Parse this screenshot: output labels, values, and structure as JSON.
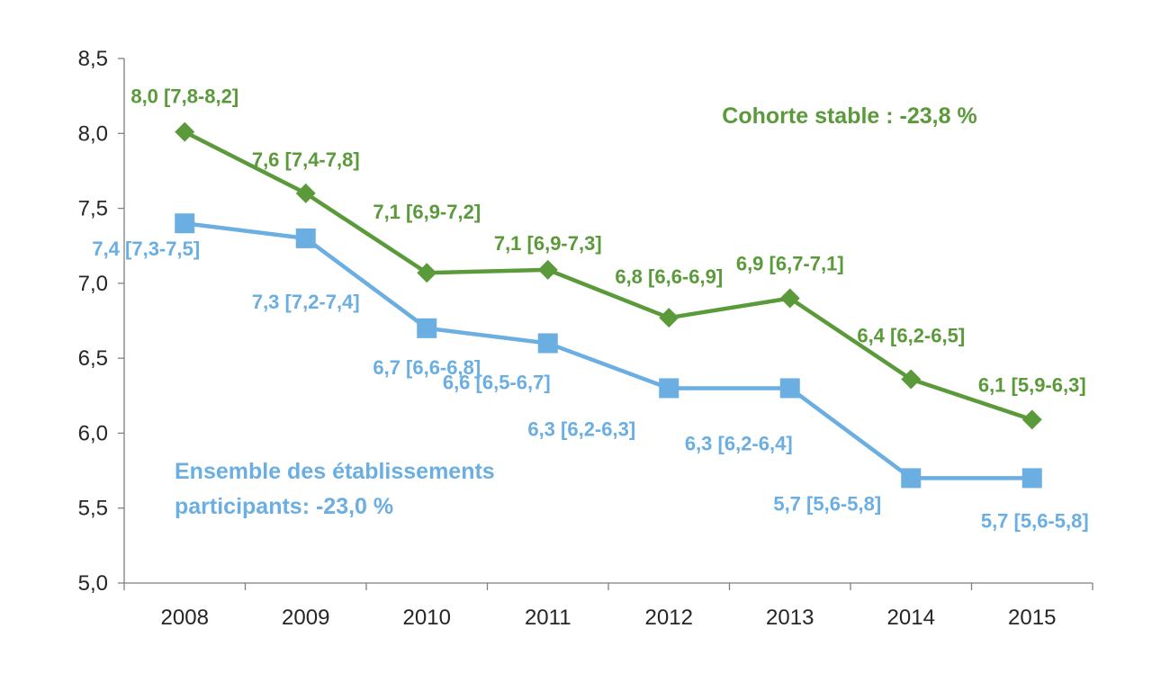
{
  "chart_data": {
    "type": "line",
    "title": "",
    "xlabel": "",
    "ylabel": "",
    "categories": [
      "2008",
      "2009",
      "2010",
      "2011",
      "2012",
      "2013",
      "2014",
      "2015"
    ],
    "ylim": [
      5.0,
      8.5
    ],
    "y_ticks": [
      "5,0",
      "5,5",
      "6,0",
      "6,5",
      "7,0",
      "7,5",
      "8,0",
      "8,5"
    ],
    "grid": false,
    "series": [
      {
        "key": "cohorte",
        "name": "Cohorte stable : -23,8 %",
        "color": "#5b9a3a",
        "marker": "diamond",
        "values": [
          8.01,
          7.6,
          7.07,
          7.09,
          6.77,
          6.9,
          6.36,
          6.09
        ],
        "labels": [
          "8,0 [7,8-8,2]",
          "7,6 [7,4-7,8]",
          "7,1 [6,9-7,2]",
          "7,1 [6,9-7,3]",
          "6,8 [6,6-6,9]",
          "6,9 [6,7-7,1]",
          "6,4 [6,2-6,5]",
          "6,1 [5,9-6,3]"
        ]
      },
      {
        "key": "ensemble",
        "name": "Ensemble des établissements participants: -23,0 %",
        "name_lines": [
          "Ensemble des établissements",
          "participants: -23,0 %"
        ],
        "color": "#6aaee2",
        "marker": "square",
        "values": [
          7.4,
          7.3,
          6.7,
          6.6,
          6.3,
          6.3,
          5.7,
          5.7
        ],
        "labels": [
          "7,4 [7,3-7,5]",
          "7,3 [7,2-7,4]",
          "6,7 [6,6-6,8]",
          "6,6 [6,5-6,7]",
          "6,3 [6,2-6,3]",
          "6,3 [6,2-6,4]",
          "5,7 [5,6-5,8]",
          "5,7 [5,6-5,8]"
        ]
      }
    ]
  }
}
